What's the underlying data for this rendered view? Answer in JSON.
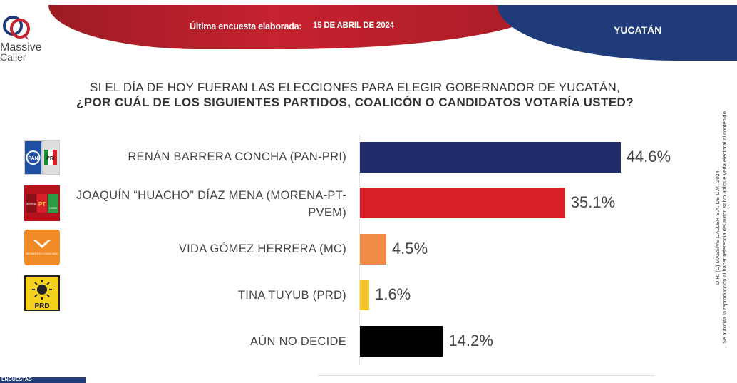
{
  "header": {
    "survey_label": "Última encuesta elaborada:",
    "survey_date": "15 DE ABRIL DE 2024",
    "region": "YUCATÁN"
  },
  "logo": {
    "line1": "Massive",
    "line2": "Caller"
  },
  "question": {
    "line1": "SI EL DÍA DE HOY FUERAN LAS ELECCIONES PARA ELEGIR GOBERNADOR DE YUCATÁN,",
    "line2": "¿POR CUÁL DE LOS SIGUIENTES PARTIDOS, COALICÓN  O CANDIDATOS VOTARÍA USTED?"
  },
  "party_icons": {
    "pan": "PAN",
    "pri": "PRI",
    "morena": "MORENA",
    "pt": "PT",
    "verde": "VERDE",
    "mc": "MOVIMIENTO CIUDADANO",
    "prd": "PRD"
  },
  "chart_data": {
    "type": "bar",
    "orientation": "horizontal",
    "categories": [
      "RENÁN BARRERA CONCHA  (PAN-PRI)",
      "JOAQUÍN “HUACHO” DÍAZ MENA  (MORENA-PT-PVEM)",
      "VIDA GÓMEZ HERRERA (MC)",
      "TINA TUYUB (PRD)",
      "AÚN NO DECIDE"
    ],
    "values": [
      44.6,
      35.1,
      4.5,
      1.6,
      14.2
    ],
    "value_labels": [
      "44.6%",
      "35.1%",
      "4.5%",
      "1.6%",
      "14.2%"
    ],
    "colors": [
      "#1f2e6b",
      "#d7202a",
      "#f08a46",
      "#f4c62b",
      "#000000"
    ],
    "xlim": [
      0,
      50
    ],
    "grid": false,
    "legend": "none"
  },
  "footer": {
    "tag": "ENCUESTAS"
  },
  "copyright": {
    "line1": "D.R. (C) MASSIVE CALLER S.A. DE C.V., 2024.",
    "line2": "Se autoriza la reproducción al hacer referencia del autor, salvo aplique veda electoral al contenido."
  }
}
